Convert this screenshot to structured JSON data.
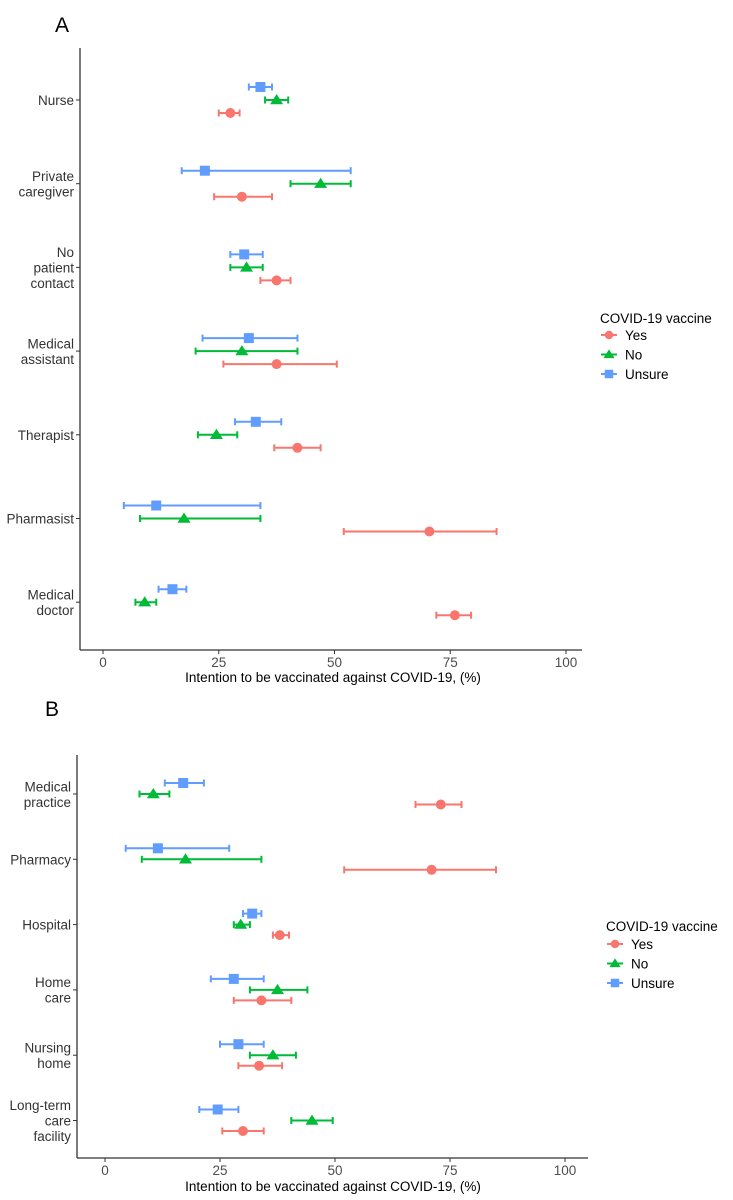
{
  "chart_data": [
    {
      "panel": "A",
      "type": "scatter",
      "subtype": "dot-and-errorbar (horizontal)",
      "title": "",
      "xlabel": "Intention to be vaccinated against COVID-19, (%)",
      "ylabel": "",
      "xlim": [
        0,
        100
      ],
      "xticks": [
        0,
        25,
        50,
        75,
        100
      ],
      "grid": false,
      "legend": {
        "title": "COVID-19 vaccine",
        "position": "right"
      },
      "categories": [
        "Nurse",
        "Private caregiver",
        "No patient contact",
        "Medical assistant",
        "Therapist",
        "Pharmasist",
        "Medical doctor"
      ],
      "category_lines": [
        [
          "Nurse"
        ],
        [
          "Private",
          "caregiver"
        ],
        [
          "No",
          "patient",
          "contact"
        ],
        [
          "Medical",
          "assistant"
        ],
        [
          "Therapist"
        ],
        [
          "Pharmasist"
        ],
        [
          "Medical",
          "doctor"
        ]
      ],
      "series": [
        {
          "name": "Yes",
          "color": "#F8766D",
          "marker": "circle",
          "values": [
            27.5,
            30,
            37.5,
            37.5,
            42,
            70.5,
            76
          ],
          "lower": [
            25,
            24,
            34,
            26,
            37,
            52,
            72
          ],
          "upper": [
            29.5,
            36.5,
            40.5,
            50.5,
            47,
            85,
            79.5
          ]
        },
        {
          "name": "No",
          "color": "#00BA38",
          "marker": "triangle",
          "values": [
            37.5,
            47,
            31,
            30,
            24.5,
            17.5,
            9
          ],
          "lower": [
            35,
            40.5,
            27.5,
            20,
            20.5,
            8,
            7
          ],
          "upper": [
            40,
            53.5,
            34.5,
            42,
            29,
            34,
            11.5
          ]
        },
        {
          "name": "Unsure",
          "color": "#619CFF",
          "marker": "square",
          "values": [
            34,
            22,
            30.5,
            31.5,
            33,
            11.5,
            15
          ],
          "lower": [
            31.5,
            17,
            27.5,
            21.5,
            28.5,
            4.5,
            12
          ],
          "upper": [
            36.5,
            53.5,
            34.5,
            42,
            38.5,
            34,
            18
          ]
        }
      ]
    },
    {
      "panel": "B",
      "type": "scatter",
      "subtype": "dot-and-errorbar (horizontal)",
      "title": "",
      "xlabel": "Intention to be vaccinated against COVID-19, (%)",
      "ylabel": "",
      "xlim": [
        0,
        100
      ],
      "xticks": [
        0,
        25,
        50,
        75,
        100
      ],
      "grid": false,
      "legend": {
        "title": "COVID-19 vaccine",
        "position": "right"
      },
      "categories": [
        "Medical practice",
        "Pharmacy",
        "Hospital",
        "Home care",
        "Nursing home",
        "Long-term care facility"
      ],
      "category_lines": [
        [
          "Medical",
          "practice"
        ],
        [
          "Pharmacy"
        ],
        [
          "Hospital"
        ],
        [
          "Home",
          "care"
        ],
        [
          "Nursing",
          "home"
        ],
        [
          "Long-term",
          "care",
          "facility"
        ]
      ],
      "series": [
        {
          "name": "Yes",
          "color": "#F8766D",
          "marker": "circle",
          "values": [
            73,
            71,
            38,
            34,
            33.5,
            30
          ],
          "lower": [
            67.5,
            52,
            36.5,
            28,
            29,
            25.5
          ],
          "upper": [
            77.5,
            85,
            40,
            40.5,
            38.5,
            34.5
          ]
        },
        {
          "name": "No",
          "color": "#00BA38",
          "marker": "triangle",
          "values": [
            10.5,
            17.5,
            29.5,
            37.5,
            36.5,
            45
          ],
          "lower": [
            7.5,
            8,
            28,
            31.5,
            31.5,
            40.5
          ],
          "upper": [
            14,
            34,
            31.5,
            44,
            41.5,
            49.5
          ]
        },
        {
          "name": "Unsure",
          "color": "#619CFF",
          "marker": "square",
          "values": [
            17,
            11.5,
            32,
            28,
            29,
            24.5
          ],
          "lower": [
            13,
            4.5,
            30,
            23,
            25,
            20.5
          ],
          "upper": [
            21.5,
            27,
            34,
            34.5,
            34.5,
            29
          ]
        }
      ]
    }
  ]
}
